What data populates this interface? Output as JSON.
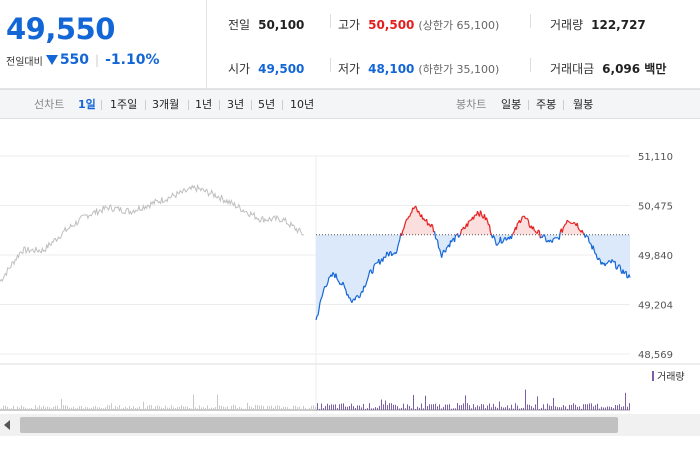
{
  "summary": {
    "price": "49,550",
    "change_label": "전일대비",
    "change_icon": "down-triangle-icon",
    "change_value": "550",
    "change_pct": "-1.10%",
    "prev_close_label": "전일",
    "prev_close": "50,100",
    "open_label": "시가",
    "open": "49,500",
    "high_label": "고가",
    "high": "50,500",
    "upper_limit": "(상한가 65,100)",
    "low_label": "저가",
    "low": "48,100",
    "lower_limit": "(하한가 35,100)",
    "volume_label": "거래량",
    "volume": "122,727",
    "amount_label": "거래대금",
    "amount": "6,096 백만"
  },
  "toolbar": {
    "line_chart_label": "선차트",
    "periods": [
      "1일",
      "1주일",
      "3개월",
      "1년",
      "3년",
      "5년",
      "10년"
    ],
    "active_period": "1일",
    "candle_chart_label": "봉차트",
    "candle_periods": [
      "일봉",
      "주봉",
      "월봉"
    ]
  },
  "colors": {
    "down": "#1366d6",
    "up": "#e41e1e",
    "prev_day": "#bfbfbf",
    "volume": "#7a5fa8"
  },
  "chart_data": {
    "type": "line",
    "ylim": [
      48569,
      51110
    ],
    "y_ticks": [
      "51,110",
      "50,475",
      "49,840",
      "49,204",
      "48,569"
    ],
    "baseline": 50100,
    "series": [
      {
        "values": [
          49500,
          49900,
          49900,
          50150,
          50350,
          50450,
          50400,
          50500,
          50600,
          50700,
          50600,
          50450,
          50300,
          50300,
          50100
        ]
      },
      {
        "values": [
          49000,
          49450,
          49600,
          49450,
          49250,
          49350,
          49600,
          49750,
          49850,
          49900,
          50300,
          50450,
          50300,
          50200,
          49850,
          50000,
          50100,
          50250,
          50400,
          50300,
          50000,
          50050,
          50100,
          50350,
          50200,
          50100,
          50000,
          50050,
          50300,
          50250,
          50100,
          49900,
          49700,
          49750,
          49650,
          49550
        ]
      }
    ],
    "volume_legend": "거래량"
  }
}
